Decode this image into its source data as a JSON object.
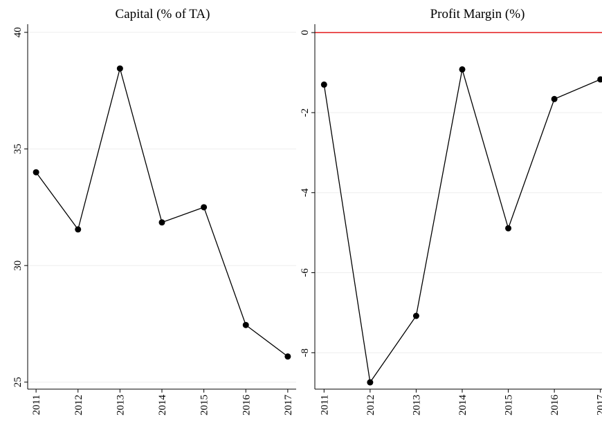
{
  "chart_data": [
    {
      "type": "line",
      "title": "Capital (% of TA)",
      "x": [
        2011,
        2012,
        2013,
        2014,
        2015,
        2016,
        2017
      ],
      "series": [
        {
          "name": "Capital",
          "color": "#000000",
          "values": [
            34.0,
            31.55,
            38.45,
            31.85,
            32.5,
            27.45,
            26.1
          ]
        }
      ],
      "xlim": [
        2010.8,
        2017.2
      ],
      "xticks": [
        2011,
        2012,
        2013,
        2014,
        2015,
        2016,
        2017
      ],
      "ylim": [
        24.7,
        40.35
      ],
      "yticks": [
        25,
        30,
        35,
        40
      ],
      "grid": true
    },
    {
      "type": "line",
      "title": "Profit Margin (%)",
      "x": [
        2011,
        2012,
        2013,
        2014,
        2015,
        2016,
        2017
      ],
      "series": [
        {
          "name": "Profit Margin",
          "color": "#000000",
          "values": [
            -1.3,
            -8.74,
            -7.08,
            -0.92,
            -4.89,
            -1.66,
            -1.17
          ]
        }
      ],
      "xlim": [
        2010.8,
        2017.2
      ],
      "xticks": [
        2011,
        2012,
        2013,
        2014,
        2015,
        2016,
        2017
      ],
      "ylim": [
        -8.91,
        0.21
      ],
      "yticks": [
        -8,
        -6,
        -4,
        -2,
        0
      ],
      "grid": true,
      "ref_line": 0,
      "ref_line_color": "#e41a1c"
    }
  ]
}
